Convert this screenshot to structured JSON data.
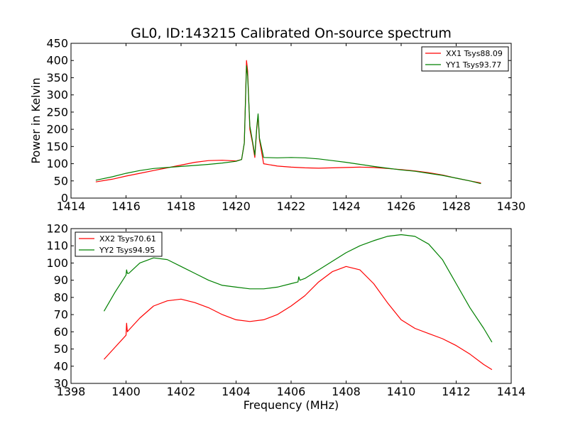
{
  "figure_title": "GL0, ID:143215 Calibrated On-source spectrum",
  "chart_data": [
    {
      "type": "line",
      "xlabel": "",
      "ylabel": "Power in Kelvin",
      "xlim": [
        1414,
        1430
      ],
      "ylim": [
        0,
        450
      ],
      "xticks": [
        1414,
        1416,
        1418,
        1420,
        1422,
        1424,
        1426,
        1428,
        1430
      ],
      "yticks": [
        0,
        50,
        100,
        150,
        200,
        250,
        300,
        350,
        400,
        450
      ],
      "legend_loc": "upper right",
      "series": [
        {
          "name": "XX1 Tsys88.09",
          "color": "#ff0000",
          "x": [
            1414.9,
            1415.5,
            1416,
            1416.5,
            1417,
            1417.5,
            1418,
            1418.5,
            1419,
            1419.5,
            1420,
            1420.2,
            1420.3,
            1420.38,
            1420.42,
            1420.5,
            1420.6,
            1420.68,
            1420.75,
            1420.8,
            1420.85,
            1421,
            1421.5,
            1422,
            1422.5,
            1423,
            1423.5,
            1424,
            1424.5,
            1425,
            1425.5,
            1426,
            1426.5,
            1427,
            1427.5,
            1428,
            1428.5,
            1428.9
          ],
          "y": [
            47,
            55,
            64,
            72,
            80,
            88,
            96,
            104,
            109,
            110,
            108,
            112,
            160,
            400,
            370,
            200,
            160,
            118,
            200,
            240,
            170,
            100,
            93,
            90,
            88,
            87,
            88,
            89,
            90,
            89,
            86,
            83,
            79,
            74,
            67,
            58,
            50,
            44
          ]
        },
        {
          "name": "YY1 Tsys93.77",
          "color": "#008000",
          "x": [
            1414.9,
            1415.5,
            1416,
            1416.5,
            1417,
            1417.5,
            1418,
            1418.5,
            1419,
            1419.5,
            1420,
            1420.2,
            1420.3,
            1420.38,
            1420.42,
            1420.5,
            1420.6,
            1420.68,
            1420.75,
            1420.8,
            1420.85,
            1421,
            1421.5,
            1422,
            1422.5,
            1423,
            1423.5,
            1424,
            1424.5,
            1425,
            1425.5,
            1426,
            1426.5,
            1427,
            1427.5,
            1428,
            1428.5,
            1428.9
          ],
          "y": [
            52,
            62,
            72,
            80,
            86,
            89,
            92,
            95,
            98,
            102,
            107,
            112,
            160,
            385,
            355,
            210,
            165,
            125,
            205,
            245,
            175,
            118,
            117,
            118,
            117,
            114,
            109,
            104,
            98,
            92,
            87,
            82,
            78,
            72,
            66,
            58,
            50,
            42
          ]
        }
      ]
    },
    {
      "type": "line",
      "xlabel": "Frequency (MHz)",
      "ylabel": "",
      "xlim": [
        1398,
        1414
      ],
      "ylim": [
        30,
        120
      ],
      "xticks": [
        1398,
        1400,
        1402,
        1404,
        1406,
        1408,
        1410,
        1412,
        1414
      ],
      "yticks": [
        30,
        40,
        50,
        60,
        70,
        80,
        90,
        100,
        110,
        120
      ],
      "legend_loc": "upper left",
      "series": [
        {
          "name": "XX2 Tsys70.61",
          "color": "#ff0000",
          "x": [
            1399.2,
            1399.6,
            1400,
            1400.02,
            1400.05,
            1400.1,
            1400.5,
            1401,
            1401.5,
            1402,
            1402.5,
            1403,
            1403.5,
            1404,
            1404.5,
            1405,
            1405.5,
            1406,
            1406.5,
            1407,
            1407.5,
            1408,
            1408.5,
            1409,
            1409.5,
            1410,
            1410.5,
            1411,
            1411.5,
            1412,
            1412.5,
            1413,
            1413.3
          ],
          "y": [
            44,
            51,
            58,
            65,
            60,
            61,
            68,
            75,
            78,
            79,
            77,
            74,
            70,
            67,
            66,
            67,
            70,
            75,
            81,
            89,
            95,
            98,
            96,
            88,
            77,
            67,
            62,
            59,
            56,
            52,
            47,
            41,
            38
          ]
        },
        {
          "name": "YY2 Tsys94.95",
          "color": "#008000",
          "x": [
            1399.2,
            1399.6,
            1400,
            1400.02,
            1400.05,
            1400.1,
            1400.5,
            1401,
            1401.5,
            1402,
            1402.5,
            1403,
            1403.5,
            1404,
            1404.5,
            1405,
            1405.5,
            1406,
            1406.25,
            1406.28,
            1406.32,
            1406.5,
            1407,
            1407.5,
            1408,
            1408.5,
            1409,
            1409.5,
            1410,
            1410.5,
            1411,
            1411.5,
            1412,
            1412.5,
            1413,
            1413.3
          ],
          "y": [
            72,
            83,
            93,
            96,
            94,
            94,
            100,
            103,
            102,
            98,
            94,
            90,
            87,
            86,
            85,
            85,
            86,
            88,
            89,
            92,
            90,
            91,
            96,
            101,
            106,
            110,
            113,
            115.5,
            116.5,
            115.5,
            111,
            102,
            88,
            74,
            62,
            54
          ]
        }
      ]
    }
  ]
}
